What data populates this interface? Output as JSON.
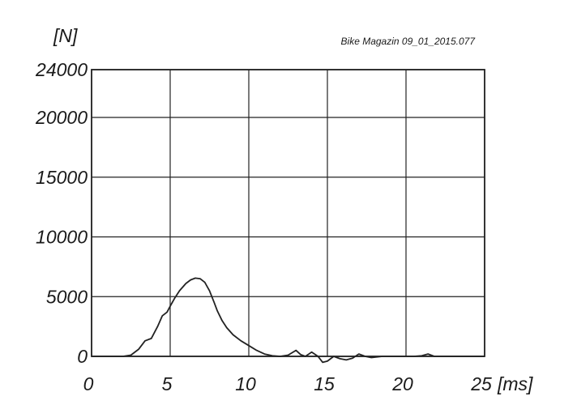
{
  "chart_data": {
    "type": "line",
    "title": "",
    "source_label": "Bike Magazin 09_01_2015.077",
    "ylabel": "[N]",
    "xlabel": "[ms]",
    "xlim": [
      0,
      25
    ],
    "ylim": [
      0,
      24000
    ],
    "x_ticks": [
      0,
      5,
      10,
      15,
      20,
      25
    ],
    "y_ticks": [
      0,
      5000,
      10000,
      15000,
      20000,
      24000
    ],
    "x_tick_labels": [
      "0",
      "5",
      "10",
      "15",
      "20",
      "25"
    ],
    "y_tick_labels": [
      "0",
      "5000",
      "10000",
      "15000",
      "20000",
      "24000"
    ],
    "grid": true,
    "series": [
      {
        "x": [
          0,
          1.0,
          2.0,
          2.5,
          3.0,
          3.4,
          3.8,
          4.2,
          4.5,
          4.8,
          5.0,
          5.3,
          5.6,
          6.0,
          6.3,
          6.6,
          6.9,
          7.2,
          7.5,
          7.8,
          8.0,
          8.3,
          8.6,
          9.0,
          9.5,
          10.0,
          10.5,
          11.0,
          11.5,
          12.0,
          12.5,
          13.0,
          13.3,
          13.6,
          14.0,
          14.4,
          14.7,
          15.0,
          15.4,
          15.8,
          16.2,
          16.6,
          17.0,
          17.4,
          17.8,
          18.5,
          19.5,
          20.5,
          21.0,
          21.4,
          21.8,
          22.5,
          23.5,
          25.0
        ],
        "y": [
          0,
          0,
          0,
          100,
          600,
          1300,
          1500,
          2500,
          3400,
          3700,
          4200,
          4900,
          5500,
          6100,
          6400,
          6550,
          6500,
          6200,
          5500,
          4500,
          3800,
          3000,
          2400,
          1800,
          1300,
          900,
          500,
          200,
          50,
          0,
          100,
          500,
          150,
          0,
          350,
          0,
          -500,
          -400,
          0,
          -200,
          -300,
          -150,
          200,
          0,
          -100,
          0,
          0,
          0,
          50,
          200,
          0,
          0,
          0,
          0
        ]
      }
    ]
  }
}
